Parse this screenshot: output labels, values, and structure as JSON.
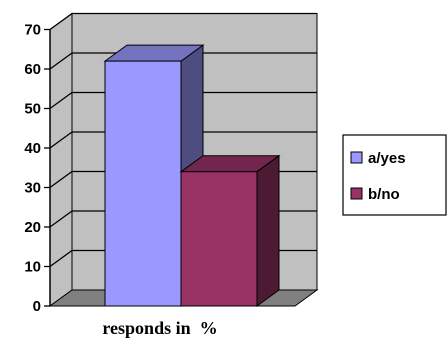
{
  "chart_data": {
    "type": "bar",
    "categories": [
      ""
    ],
    "series": [
      {
        "name": "a/yes",
        "values": [
          62
        ],
        "color": "#9999ff"
      },
      {
        "name": "b/no",
        "values": [
          34
        ],
        "color": "#993366"
      }
    ],
    "xlabel": "responds in  %",
    "ylabel": "",
    "ylim": [
      0,
      70
    ],
    "yticks": [
      0,
      10,
      20,
      30,
      40,
      50,
      60,
      70
    ],
    "grid": true,
    "legend": "right",
    "style": "3d"
  }
}
